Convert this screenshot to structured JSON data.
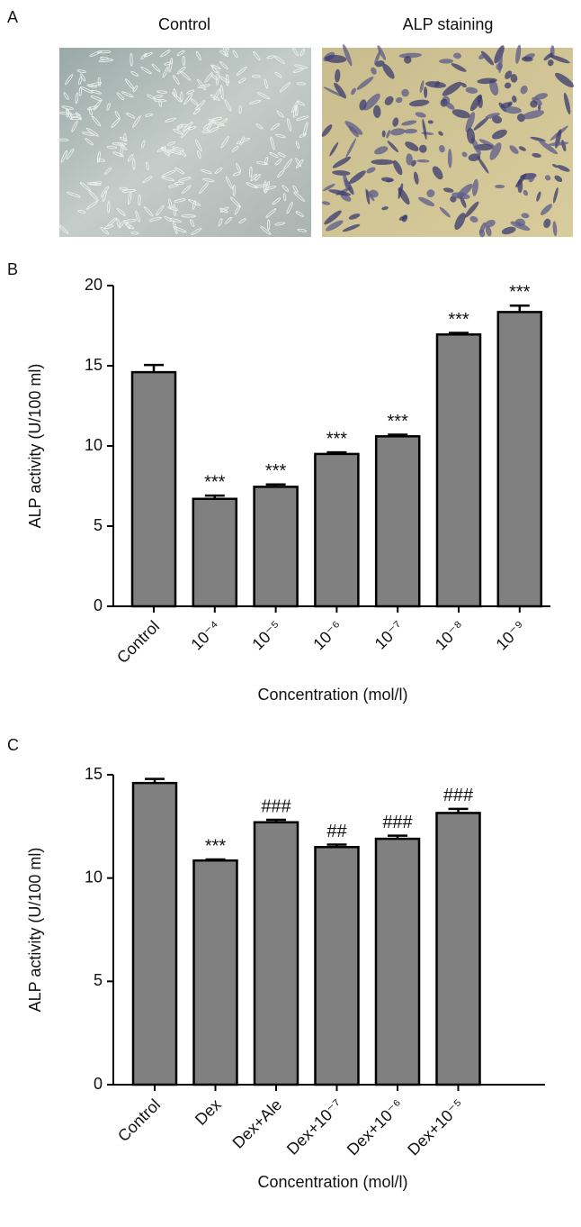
{
  "panel_labels": [
    "A",
    "B",
    "C"
  ],
  "images": [
    "Control",
    "ALP staining"
  ],
  "chart_data": [
    {
      "type": "bar",
      "categories": [
        "Control",
        "10⁻⁴",
        "10⁻⁵",
        "10⁻⁶",
        "10⁻⁷",
        "10⁻⁸",
        "10⁻⁹"
      ],
      "values": [
        14.6,
        6.7,
        7.45,
        9.5,
        10.6,
        16.95,
        18.35
      ],
      "errors": [
        0.45,
        0.2,
        0.15,
        0.1,
        0.1,
        0.1,
        0.4
      ],
      "annotations": [
        null,
        "***",
        "***",
        "***",
        "***",
        "***",
        "***"
      ],
      "color": "#808080",
      "ylim": [
        0,
        20
      ],
      "yticks": [
        0,
        5,
        10,
        15,
        20
      ],
      "y_label": "ALP activity (U/100 ml)",
      "x_label": "Concentration (mol/l)"
    },
    {
      "type": "bar",
      "categories": [
        "Control",
        "Dex",
        "Dex+Ale",
        "Dex+10⁻⁷",
        "Dex+10⁻⁶",
        "Dex+10⁻⁵"
      ],
      "values": [
        14.6,
        10.85,
        12.7,
        11.5,
        11.9,
        13.15
      ],
      "errors": [
        0.2,
        0.05,
        0.12,
        0.12,
        0.15,
        0.2
      ],
      "annotations": [
        null,
        "***",
        "###",
        "##",
        "###",
        "###"
      ],
      "color": "#808080",
      "ylim": [
        0,
        15
      ],
      "yticks": [
        0,
        5,
        10,
        15
      ],
      "y_label": "ALP activity (U/100 ml)",
      "x_label": "Concentration (mol/l)"
    }
  ]
}
